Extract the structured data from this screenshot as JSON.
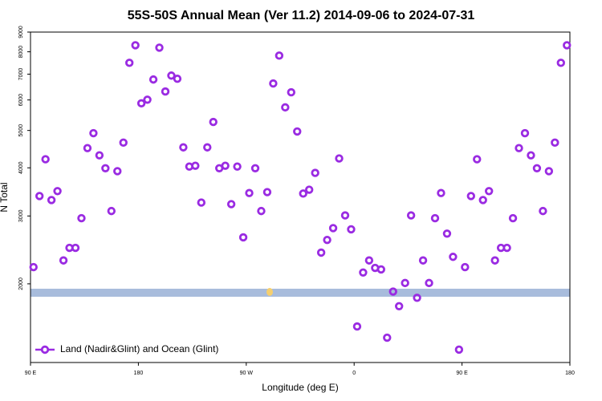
{
  "chart_data": {
    "type": "scatter",
    "title": "55S-50S Annual Mean (Ver 11.2)   2014-09-06 to 2024-07-31",
    "x_label": "Longitude (deg E)",
    "y_label": "N Total",
    "log_y": true,
    "legend_position": "lower left",
    "xlim": [
      90,
      540
    ],
    "ylim": [
      1250,
      9000
    ],
    "xticks": [
      {
        "value": 90,
        "label": "90 E"
      },
      180,
      {
        "value": 270,
        "label": "90 W"
      },
      {
        "value": 360,
        "label": "0"
      },
      {
        "value": 450,
        "label": "90 E"
      },
      {
        "value": 540,
        "label": "180"
      }
    ],
    "yticks": [
      2000,
      3000,
      4000,
      5000,
      6000,
      7000,
      8000,
      9000
    ],
    "series": [
      {
        "name": "Land (Nadir&Glint) and Ocean (Glint)",
        "color": "#9a2be2",
        "x": [
          92.5,
          97.5,
          102.5,
          107.5,
          112.5,
          117.5,
          122.5,
          127.5,
          132.5,
          137.5,
          142.5,
          147.5,
          152.5,
          157.5,
          162.5,
          167.5,
          172.5,
          177.5,
          182.5,
          187.5,
          192.5,
          197.5,
          202.5,
          207.5,
          212.5,
          217.5,
          222.5,
          227.5,
          232.5,
          237.5,
          242.5,
          247.5,
          252.5,
          257.5,
          262.5,
          267.5,
          272.5,
          277.5,
          282.5,
          287.5,
          292.5,
          297.5,
          302.5,
          307.5,
          312.5,
          317.5,
          322.5,
          327.5,
          332.5,
          337.5,
          342.5,
          347.5,
          352.5,
          357.5,
          362.5,
          367.5,
          372.5,
          377.5,
          382.5,
          387.5,
          392.5,
          397.5,
          402.5,
          407.5,
          412.5,
          417.5,
          422.5,
          427.5,
          432.5,
          437.5,
          442.5,
          447.5,
          452.5,
          457.5,
          462.5,
          467.5,
          472.5,
          477.5,
          482.5,
          487.5,
          492.5,
          497.5,
          502.5,
          507.5,
          512.5,
          517.5,
          522.5,
          527.5,
          532.5,
          537.5
        ],
        "values": [
          2210,
          3380,
          4210,
          3300,
          3480,
          2300,
          2480,
          2480,
          2960,
          4500,
          4920,
          4310,
          3990,
          3090,
          3920,
          4650,
          7490,
          8320,
          5880,
          6010,
          6780,
          8200,
          6310,
          6940,
          6810,
          4520,
          4030,
          4050,
          3250,
          4520,
          5260,
          3990,
          4050,
          3220,
          4030,
          2640,
          3440,
          3990,
          3090,
          3460,
          6620,
          7820,
          5740,
          6280,
          4970,
          3430,
          3510,
          3880,
          2410,
          2600,
          2790,
          4230,
          3010,
          2770,
          1550,
          2140,
          2300,
          2200,
          2180,
          1450,
          1910,
          1750,
          2010,
          3010,
          1840,
          2300,
          2010,
          2960,
          3440,
          2700,
          2350,
          1350,
          2210,
          3380,
          4210,
          3300,
          3480,
          2300,
          2480,
          2480,
          2960,
          4500,
          4920,
          4310,
          3990,
          3090,
          3920,
          4650,
          7490,
          8320
        ]
      }
    ]
  }
}
